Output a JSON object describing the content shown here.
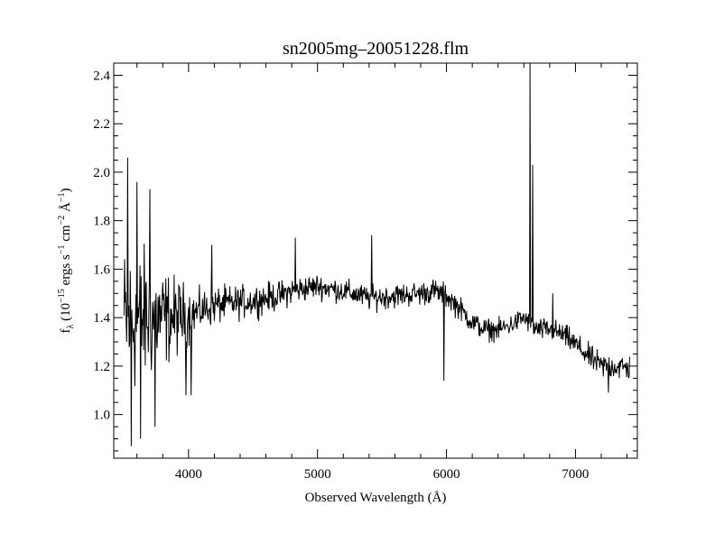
{
  "chart_data": {
    "type": "line",
    "title": "sn2005mg–20051228.flm",
    "xlabel": "Observed Wavelength (Å)",
    "ylabel": {
      "f": "f",
      "lambda_sub": "λ",
      "open": " (10",
      "exp1": "−15",
      "ergs": " ergs s",
      "exp2": "−1",
      "cm": " cm",
      "exp3": "−2",
      "ang": " Å",
      "exp4": "−1",
      "close": ")"
    },
    "xlim": [
      3420,
      7480
    ],
    "ylim": [
      0.82,
      2.45
    ],
    "xticks": [
      4000,
      5000,
      6000,
      7000
    ],
    "xtick_labels": [
      "4000",
      "5000",
      "6000",
      "7000"
    ],
    "x_minor_step": 200,
    "yticks": [
      1.0,
      1.2,
      1.4,
      1.6,
      1.8,
      2.0,
      2.2,
      2.4
    ],
    "ytick_labels": [
      "1.0",
      "1.2",
      "1.4",
      "1.6",
      "1.8",
      "2.0",
      "2.2",
      "2.4"
    ],
    "y_minor_step": 0.05,
    "grid": false,
    "series": [
      {
        "color": "#000000",
        "x_range": [
          3500,
          7420
        ],
        "x_step": 4,
        "continuum": [
          [
            3500,
            1.38
          ],
          [
            3700,
            1.4
          ],
          [
            3900,
            1.4
          ],
          [
            4000,
            1.41
          ],
          [
            4200,
            1.45
          ],
          [
            4500,
            1.47
          ],
          [
            4700,
            1.49
          ],
          [
            4800,
            1.51
          ],
          [
            5000,
            1.53
          ],
          [
            5200,
            1.51
          ],
          [
            5400,
            1.48
          ],
          [
            5600,
            1.49
          ],
          [
            5800,
            1.5
          ],
          [
            5900,
            1.51
          ],
          [
            6000,
            1.49
          ],
          [
            6100,
            1.44
          ],
          [
            6200,
            1.38
          ],
          [
            6300,
            1.35
          ],
          [
            6400,
            1.35
          ],
          [
            6500,
            1.37
          ],
          [
            6600,
            1.4
          ],
          [
            6700,
            1.35
          ],
          [
            6800,
            1.35
          ],
          [
            6900,
            1.33
          ],
          [
            7000,
            1.29
          ],
          [
            7100,
            1.24
          ],
          [
            7200,
            1.2
          ],
          [
            7300,
            1.2
          ],
          [
            7420,
            1.19
          ]
        ],
        "noise_profile": [
          [
            3500,
            0.22
          ],
          [
            3650,
            0.2
          ],
          [
            3800,
            0.14
          ],
          [
            3950,
            0.1
          ],
          [
            4050,
            0.06
          ],
          [
            4300,
            0.05
          ],
          [
            5000,
            0.035
          ],
          [
            6000,
            0.035
          ],
          [
            6500,
            0.03
          ],
          [
            7000,
            0.035
          ],
          [
            7420,
            0.04
          ]
        ],
        "features": [
          {
            "x": 3530,
            "y": 2.06
          },
          {
            "x": 3555,
            "y": 0.87
          },
          {
            "x": 3600,
            "y": 1.96
          },
          {
            "x": 3630,
            "y": 0.9
          },
          {
            "x": 3700,
            "y": 1.93
          },
          {
            "x": 3740,
            "y": 0.95
          },
          {
            "x": 3980,
            "y": 1.08
          },
          {
            "x": 4020,
            "y": 1.08
          },
          {
            "x": 4180,
            "y": 1.7
          },
          {
            "x": 4830,
            "y": 1.73
          },
          {
            "x": 5420,
            "y": 1.74
          },
          {
            "x": 5980,
            "y": 1.14
          },
          {
            "x": 6650,
            "y": 2.45
          },
          {
            "x": 6660,
            "y": 1.4
          },
          {
            "x": 6668,
            "y": 2.03
          },
          {
            "x": 6825,
            "y": 1.5
          },
          {
            "x": 7255,
            "y": 1.09
          }
        ]
      }
    ]
  }
}
